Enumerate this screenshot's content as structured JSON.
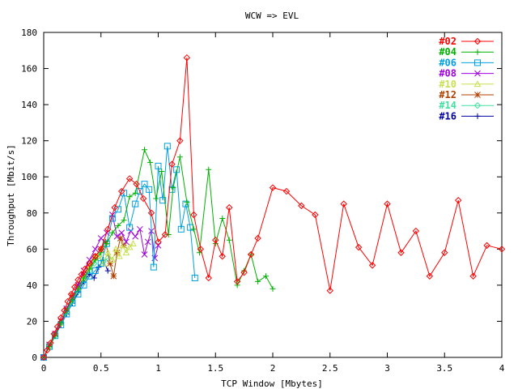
{
  "chart_data": {
    "type": "line",
    "title": "WCW => EVL",
    "xlabel": "TCP Window [Mbytes]",
    "ylabel": "Throughput [Mbit/s]",
    "xlim": [
      0,
      4
    ],
    "ylim": [
      0,
      180
    ],
    "xticks": [
      "0",
      "0.5",
      "1",
      "1.5",
      "2",
      "2.5",
      "3",
      "3.5",
      "4"
    ],
    "yticks": [
      "0",
      "20",
      "40",
      "60",
      "80",
      "100",
      "120",
      "140",
      "160",
      "180"
    ],
    "grid": false,
    "legend": "top-right",
    "series": [
      {
        "name": "#02",
        "color": "#ff0000",
        "marker": "diamond",
        "x": [
          0.0,
          0.03,
          0.06,
          0.09,
          0.12,
          0.15,
          0.18,
          0.21,
          0.24,
          0.27,
          0.3,
          0.33,
          0.36,
          0.4,
          0.45,
          0.5,
          0.56,
          0.62,
          0.68,
          0.75,
          0.81,
          0.87,
          0.94,
          1.0,
          1.06,
          1.12,
          1.19,
          1.25,
          1.31,
          1.37,
          1.44,
          1.5,
          1.56,
          1.62,
          1.69,
          1.75,
          1.81,
          1.87,
          2.0,
          2.12,
          2.25,
          2.37,
          2.5,
          2.62,
          2.75,
          2.87,
          3.0,
          3.12,
          3.25,
          3.37,
          3.5,
          3.62,
          3.75,
          3.87,
          4.0
        ],
        "y": [
          0,
          4,
          8,
          13,
          17,
          22,
          26,
          31,
          35,
          39,
          43,
          46,
          49,
          52,
          56,
          60,
          71,
          83,
          92,
          99,
          96,
          88,
          80,
          64,
          68,
          107,
          120,
          166,
          79,
          60,
          44,
          65,
          56,
          83,
          42,
          47,
          57,
          66,
          94,
          92,
          84,
          79,
          37,
          85,
          61,
          51,
          85,
          58,
          70,
          45,
          58,
          87,
          45,
          62,
          60
        ]
      },
      {
        "name": "#04",
        "color": "#00b000",
        "marker": "plus",
        "x": [
          0.0,
          0.05,
          0.1,
          0.15,
          0.2,
          0.25,
          0.3,
          0.35,
          0.4,
          0.45,
          0.5,
          0.55,
          0.6,
          0.65,
          0.7,
          0.75,
          0.8,
          0.88,
          0.93,
          0.98,
          1.03,
          1.09,
          1.13,
          1.19,
          1.25,
          1.31,
          1.36,
          1.44,
          1.5,
          1.56,
          1.62,
          1.69,
          1.75,
          1.81,
          1.87,
          1.94,
          2.0
        ],
        "y": [
          0,
          6,
          12,
          19,
          26,
          32,
          38,
          44,
          49,
          54,
          58,
          63,
          69,
          73,
          76,
          89,
          91,
          115,
          108,
          88,
          103,
          68,
          94,
          111,
          86,
          71,
          58,
          104,
          63,
          77,
          65,
          40,
          48,
          57,
          42,
          45,
          38
        ]
      },
      {
        "name": "#06",
        "color": "#00a0e0",
        "marker": "square",
        "x": [
          0.0,
          0.05,
          0.1,
          0.15,
          0.2,
          0.25,
          0.3,
          0.35,
          0.4,
          0.45,
          0.5,
          0.55,
          0.6,
          0.65,
          0.7,
          0.75,
          0.8,
          0.84,
          0.88,
          0.92,
          0.96,
          1.0,
          1.04,
          1.08,
          1.12,
          1.16,
          1.2,
          1.24,
          1.28,
          1.32
        ],
        "y": [
          0,
          6,
          12,
          18,
          24,
          30,
          35,
          40,
          45,
          48,
          52,
          63,
          77,
          82,
          91,
          72,
          85,
          92,
          96,
          93,
          50,
          106,
          87,
          117,
          93,
          104,
          71,
          85,
          72,
          44
        ]
      },
      {
        "name": "#08",
        "color": "#a000e0",
        "marker": "x",
        "x": [
          0.0,
          0.05,
          0.1,
          0.15,
          0.2,
          0.25,
          0.3,
          0.35,
          0.4,
          0.45,
          0.5,
          0.55,
          0.6,
          0.64,
          0.68,
          0.72,
          0.76,
          0.8,
          0.84,
          0.88,
          0.91,
          0.94,
          0.97,
          1.0
        ],
        "y": [
          0,
          7,
          13,
          20,
          27,
          33,
          40,
          48,
          54,
          60,
          66,
          69,
          79,
          67,
          69,
          64,
          70,
          67,
          71,
          57,
          64,
          70,
          55,
          62
        ]
      },
      {
        "name": "#10",
        "color": "#c8e050",
        "marker": "triangle",
        "x": [
          0.0,
          0.05,
          0.1,
          0.15,
          0.2,
          0.25,
          0.3,
          0.35,
          0.4,
          0.44,
          0.48,
          0.52,
          0.56,
          0.6,
          0.63,
          0.66,
          0.69,
          0.72,
          0.75,
          0.78
        ],
        "y": [
          0,
          6,
          13,
          19,
          26,
          32,
          38,
          44,
          50,
          55,
          57,
          52,
          58,
          54,
          60,
          56,
          62,
          58,
          61,
          63
        ]
      },
      {
        "name": "#12",
        "color": "#b04000",
        "marker": "star",
        "x": [
          0.0,
          0.05,
          0.1,
          0.15,
          0.2,
          0.25,
          0.3,
          0.35,
          0.4,
          0.45,
          0.5,
          0.54,
          0.58,
          0.61,
          0.64,
          0.67,
          0.7
        ],
        "y": [
          0,
          7,
          13,
          20,
          27,
          34,
          40,
          46,
          51,
          56,
          60,
          64,
          52,
          45,
          58,
          66,
          62
        ]
      },
      {
        "name": "#14",
        "color": "#40e0a0",
        "marker": "diamond",
        "x": [
          0.0,
          0.05,
          0.1,
          0.15,
          0.2,
          0.25,
          0.3,
          0.35,
          0.4,
          0.44,
          0.48,
          0.52,
          0.56
        ],
        "y": [
          0,
          6,
          12,
          19,
          25,
          31,
          37,
          43,
          48,
          52,
          56,
          53,
          55
        ]
      },
      {
        "name": "#16",
        "color": "#0000a0",
        "marker": "plus",
        "x": [
          0.0,
          0.05,
          0.1,
          0.15,
          0.2,
          0.25,
          0.3,
          0.35,
          0.4,
          0.44,
          0.48,
          0.52,
          0.56
        ],
        "y": [
          0,
          6,
          12,
          18,
          24,
          30,
          36,
          42,
          46,
          44,
          50,
          54,
          48
        ]
      }
    ]
  }
}
